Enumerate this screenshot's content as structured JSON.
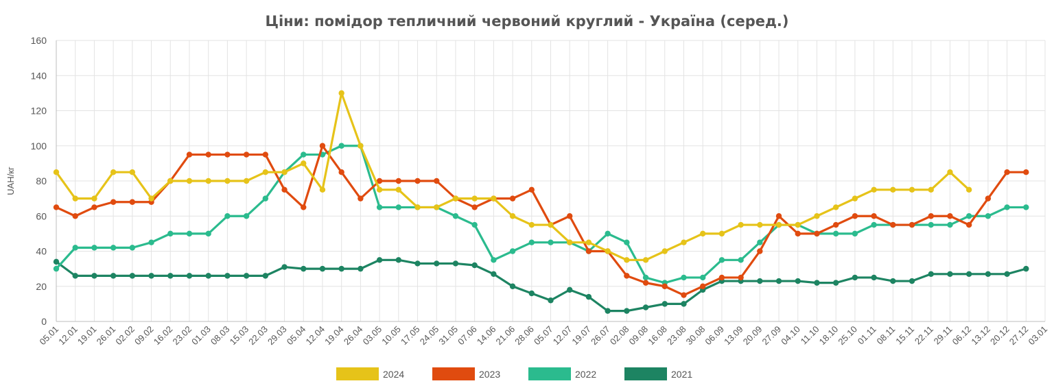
{
  "chart_data": {
    "type": "line",
    "title": "Ціни: помідор тепличний червоний круглий - Україна (серед.)",
    "ylabel": "UAH/кг",
    "xlabel": "",
    "ylim": [
      0,
      160
    ],
    "yticks": [
      0,
      20,
      40,
      60,
      80,
      100,
      120,
      140,
      160
    ],
    "grid": true,
    "legend_position": "bottom",
    "categories": [
      "05.01",
      "12.01",
      "19.01",
      "26.01",
      "02.02",
      "09.02",
      "16.02",
      "23.02",
      "01.03",
      "08.03",
      "15.03",
      "22.03",
      "29.03",
      "05.04",
      "12.04",
      "19.04",
      "26.04",
      "03.05",
      "10.05",
      "17.05",
      "24.05",
      "31.05",
      "07.06",
      "14.06",
      "21.06",
      "28.06",
      "05.07",
      "12.07",
      "19.07",
      "26.07",
      "02.08",
      "09.08",
      "16.08",
      "23.08",
      "30.08",
      "06.09",
      "13.09",
      "20.09",
      "27.09",
      "04.10",
      "11.10",
      "18.10",
      "25.10",
      "01.11",
      "08.11",
      "15.11",
      "22.11",
      "29.11",
      "06.12",
      "13.12",
      "20.12",
      "27.12",
      "03.01"
    ],
    "series": [
      {
        "name": "2024",
        "color": "#e6c319",
        "values": [
          85,
          70,
          70,
          85,
          85,
          70,
          80,
          80,
          80,
          80,
          80,
          85,
          85,
          90,
          75,
          130,
          100,
          75,
          75,
          65,
          65,
          70,
          70,
          70,
          60,
          55,
          55,
          45,
          45,
          40,
          35,
          35,
          40,
          45,
          50,
          50,
          55,
          55,
          55,
          55,
          60,
          65,
          70,
          75,
          75,
          75,
          75,
          85,
          75,
          null,
          null,
          null,
          null
        ]
      },
      {
        "name": "2023",
        "color": "#e04b0f",
        "values": [
          65,
          60,
          65,
          68,
          68,
          68,
          80,
          95,
          95,
          95,
          95,
          95,
          75,
          65,
          100,
          85,
          70,
          80,
          80,
          80,
          80,
          70,
          65,
          70,
          70,
          75,
          55,
          60,
          40,
          40,
          26,
          22,
          20,
          15,
          20,
          25,
          25,
          40,
          60,
          50,
          50,
          55,
          60,
          60,
          55,
          55,
          60,
          60,
          55,
          70,
          85,
          85,
          null
        ]
      },
      {
        "name": "2022",
        "color": "#2bbb8e",
        "values": [
          30,
          42,
          42,
          42,
          42,
          45,
          50,
          50,
          50,
          60,
          60,
          70,
          85,
          95,
          95,
          100,
          100,
          65,
          65,
          65,
          65,
          60,
          55,
          35,
          40,
          45,
          45,
          45,
          40,
          50,
          45,
          25,
          22,
          25,
          25,
          35,
          35,
          45,
          55,
          55,
          50,
          50,
          50,
          55,
          55,
          55,
          55,
          55,
          60,
          60,
          65,
          65,
          null
        ]
      },
      {
        "name": "2021",
        "color": "#1d8462",
        "values": [
          34,
          26,
          26,
          26,
          26,
          26,
          26,
          26,
          26,
          26,
          26,
          26,
          31,
          30,
          30,
          30,
          30,
          35,
          35,
          33,
          33,
          33,
          32,
          27,
          20,
          16,
          12,
          18,
          14,
          6,
          6,
          8,
          10,
          10,
          18,
          23,
          23,
          23,
          23,
          23,
          22,
          22,
          25,
          25,
          23,
          23,
          27,
          27,
          27,
          27,
          27,
          30,
          null
        ]
      }
    ]
  }
}
